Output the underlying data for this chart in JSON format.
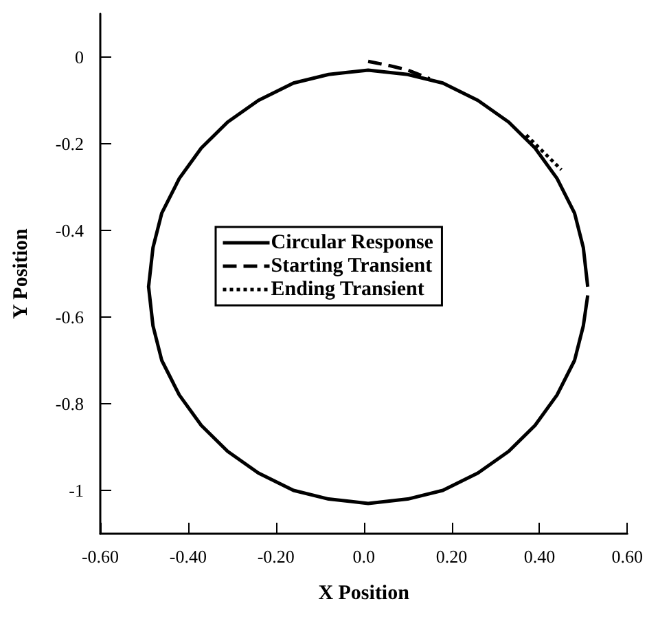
{
  "chart_data": {
    "type": "line",
    "xlabel": "X Position",
    "ylabel": "Y Position",
    "xlim": [
      -0.6,
      0.6
    ],
    "ylim": [
      -1.1,
      0.1
    ],
    "xticks": [
      {
        "value": -0.6,
        "label": "-0.60"
      },
      {
        "value": -0.4,
        "label": "-0.40"
      },
      {
        "value": -0.2,
        "label": "-0.20"
      },
      {
        "value": 0,
        "label": "0.0"
      },
      {
        "value": 0.2,
        "label": "0.20"
      },
      {
        "value": 0.4,
        "label": "0.40"
      },
      {
        "value": 0.6,
        "label": "0.60"
      }
    ],
    "yticks": [
      0,
      -0.2,
      -0.4,
      -0.6,
      -0.8,
      -1
    ],
    "grid": false,
    "legend": "center",
    "marker": "none",
    "series": [
      {
        "name": "Circular Response",
        "color": "#000000",
        "line_style": "solid",
        "x": [
          0.51,
          0.5,
          0.48,
          0.44,
          0.39,
          0.33,
          0.26,
          0.18,
          0.1,
          0.01,
          -0.08,
          -0.16,
          -0.24,
          -0.31,
          -0.37,
          -0.42,
          -0.46,
          -0.48,
          -0.49,
          -0.48,
          -0.46,
          -0.42,
          -0.37,
          -0.31,
          -0.24,
          -0.16,
          -0.08,
          0.01,
          0.1,
          0.18,
          0.26,
          0.33,
          0.39,
          0.44,
          0.48,
          0.5,
          0.51
        ],
        "values": [
          -0.53,
          -0.44,
          -0.36,
          -0.28,
          -0.21,
          -0.15,
          -0.1,
          -0.06,
          -0.04,
          -0.03,
          -0.04,
          -0.06,
          -0.1,
          -0.15,
          -0.21,
          -0.28,
          -0.36,
          -0.44,
          -0.53,
          -0.62,
          -0.7,
          -0.78,
          -0.85,
          -0.91,
          -0.96,
          -1.0,
          -1.02,
          -1.03,
          -1.02,
          -1.0,
          -0.96,
          -0.91,
          -0.85,
          -0.78,
          -0.7,
          -0.62,
          -0.55
        ]
      },
      {
        "name": "Starting Transient",
        "color": "#000000",
        "line_style": "dashed",
        "x": [
          0.01,
          0.06,
          0.1,
          0.15
        ],
        "values": [
          -0.01,
          -0.02,
          -0.03,
          -0.05
        ]
      },
      {
        "name": "Ending Transient",
        "color": "#000000",
        "line_style": "dotted",
        "x": [
          0.37,
          0.4,
          0.43,
          0.45
        ],
        "values": [
          -0.18,
          -0.21,
          -0.24,
          -0.26
        ]
      }
    ]
  }
}
